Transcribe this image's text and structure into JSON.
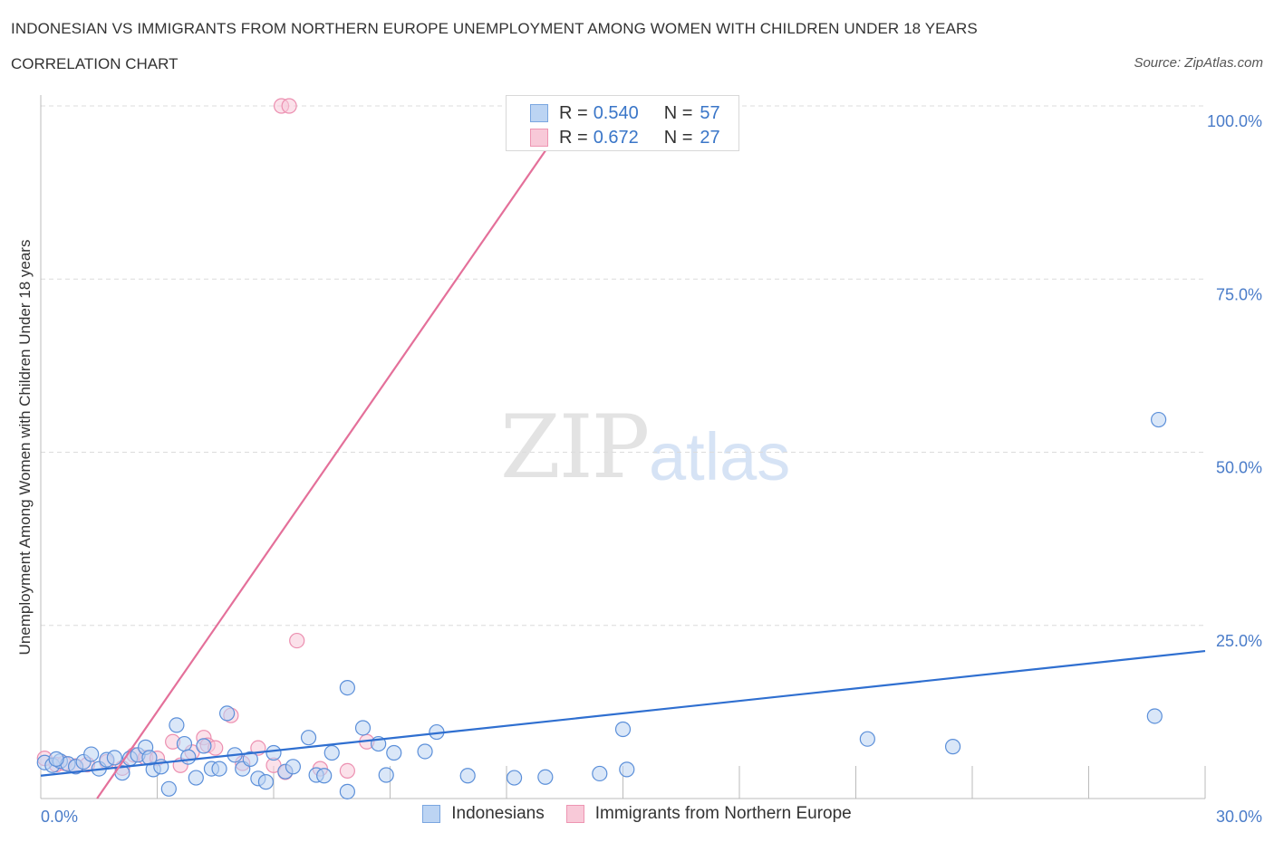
{
  "header": {
    "title": "INDONESIAN VS IMMIGRANTS FROM NORTHERN EUROPE UNEMPLOYMENT AMONG WOMEN WITH CHILDREN UNDER 18 YEARS",
    "subtitle": "CORRELATION CHART",
    "source": "Source: ZipAtlas.com"
  },
  "watermark": {
    "zip": "ZIP",
    "atlas": "atlas"
  },
  "legend": {
    "rows": [
      {
        "swatch_color": "#bcd4f3",
        "border_color": "#7aa6e0",
        "r_label": "R =",
        "r_value": "0.540",
        "n_label": "N =",
        "n_value": "57"
      },
      {
        "swatch_color": "#f8c9d8",
        "border_color": "#ee95b2",
        "r_label": "R =",
        "r_value": "0.672",
        "n_label": "N =",
        "n_value": "27"
      }
    ]
  },
  "bottom_legend": [
    {
      "label": "Indonesians",
      "swatch_color": "#bcd4f3",
      "border_color": "#7aa6e0"
    },
    {
      "label": "Immigrants from Northern Europe",
      "swatch_color": "#f8c9d8",
      "border_color": "#ee95b2"
    }
  ],
  "chart_data": {
    "type": "scatter",
    "title": "INDONESIAN VS IMMIGRANTS FROM NORTHERN EUROPE UNEMPLOYMENT AMONG WOMEN WITH CHILDREN UNDER 18 YEARS",
    "xlabel": "",
    "ylabel": "Unemployment Among Women with Children Under 18 years",
    "xlim": [
      0,
      30
    ],
    "ylim": [
      0,
      100
    ],
    "x_tick_labels": [
      "0.0%",
      "30.0%"
    ],
    "y_ticks": [
      {
        "value": 25,
        "label": "25.0%"
      },
      {
        "value": 50,
        "label": "50.0%"
      },
      {
        "value": 75,
        "label": "75.0%"
      },
      {
        "value": 100,
        "label": "100.0%"
      }
    ],
    "grid": true,
    "series": [
      {
        "name": "Indonesians",
        "color": "#5b8fd9",
        "fill": "#bcd4f3",
        "trend": {
          "x": [
            0.0,
            30.0
          ],
          "y": [
            3.3,
            21.3
          ],
          "color": "#2f6fd0"
        },
        "points": [
          [
            0.1,
            5.2
          ],
          [
            0.3,
            4.8
          ],
          [
            0.5,
            5.4
          ],
          [
            0.7,
            5.0
          ],
          [
            0.9,
            4.6
          ],
          [
            1.1,
            5.3
          ],
          [
            1.3,
            6.4
          ],
          [
            1.5,
            4.3
          ],
          [
            1.7,
            5.6
          ],
          [
            1.9,
            5.9
          ],
          [
            2.1,
            3.7
          ],
          [
            2.3,
            5.8
          ],
          [
            2.5,
            6.3
          ],
          [
            2.7,
            7.4
          ],
          [
            2.9,
            4.2
          ],
          [
            3.1,
            4.6
          ],
          [
            3.3,
            1.4
          ],
          [
            3.5,
            10.6
          ],
          [
            3.7,
            7.9
          ],
          [
            3.8,
            6.0
          ],
          [
            4.0,
            3.0
          ],
          [
            4.2,
            7.6
          ],
          [
            4.4,
            4.3
          ],
          [
            4.6,
            4.3
          ],
          [
            4.8,
            12.3
          ],
          [
            5.0,
            6.3
          ],
          [
            5.2,
            4.3
          ],
          [
            5.4,
            5.7
          ],
          [
            5.6,
            2.9
          ],
          [
            5.8,
            2.4
          ],
          [
            6.0,
            6.6
          ],
          [
            6.3,
            3.9
          ],
          [
            6.5,
            4.6
          ],
          [
            6.9,
            8.8
          ],
          [
            7.1,
            3.4
          ],
          [
            7.3,
            3.3
          ],
          [
            7.5,
            6.6
          ],
          [
            7.9,
            16.0
          ],
          [
            7.9,
            1.0
          ],
          [
            8.3,
            10.2
          ],
          [
            8.7,
            7.9
          ],
          [
            8.9,
            3.4
          ],
          [
            9.1,
            6.6
          ],
          [
            9.9,
            6.8
          ],
          [
            10.2,
            9.6
          ],
          [
            11.0,
            3.3
          ],
          [
            12.2,
            3.0
          ],
          [
            13.0,
            3.1
          ],
          [
            14.4,
            3.6
          ],
          [
            15.0,
            10.0
          ],
          [
            15.1,
            4.2
          ],
          [
            21.3,
            8.6
          ],
          [
            23.5,
            7.5
          ],
          [
            28.7,
            11.9
          ],
          [
            28.8,
            54.7
          ],
          [
            0.4,
            5.7
          ],
          [
            2.8,
            5.9
          ]
        ]
      },
      {
        "name": "Immigrants from Northern Europe",
        "color": "#ec8fb0",
        "fill": "#f8c9d8",
        "trend": {
          "x": [
            1.45,
            13.8
          ],
          "y": [
            0.0,
            100.0
          ],
          "color": "#e4709a"
        },
        "points": [
          [
            0.1,
            5.8
          ],
          [
            0.4,
            4.9
          ],
          [
            0.6,
            5.1
          ],
          [
            0.9,
            4.7
          ],
          [
            1.2,
            4.9
          ],
          [
            1.7,
            5.3
          ],
          [
            2.1,
            4.4
          ],
          [
            2.4,
            6.3
          ],
          [
            2.7,
            5.9
          ],
          [
            3.0,
            5.8
          ],
          [
            3.4,
            8.2
          ],
          [
            3.6,
            4.8
          ],
          [
            3.9,
            6.7
          ],
          [
            4.2,
            8.8
          ],
          [
            4.3,
            7.7
          ],
          [
            4.5,
            7.3
          ],
          [
            4.9,
            12.0
          ],
          [
            5.2,
            5.1
          ],
          [
            5.6,
            7.3
          ],
          [
            6.0,
            4.8
          ],
          [
            6.3,
            3.8
          ],
          [
            6.6,
            22.8
          ],
          [
            7.2,
            4.3
          ],
          [
            7.9,
            4.0
          ],
          [
            8.4,
            8.2
          ],
          [
            6.2,
            100.0
          ],
          [
            6.4,
            100.0
          ]
        ]
      }
    ]
  }
}
